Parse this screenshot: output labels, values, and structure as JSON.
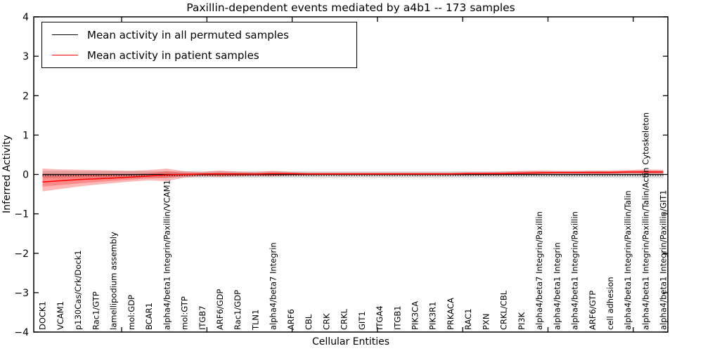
{
  "title": "Paxillin-dependent events mediated by a4b1 -- 173 samples",
  "legend": {
    "entries": [
      {
        "label": "Mean activity in all permuted samples",
        "color": "#000000"
      },
      {
        "label": "Mean activity in patient samples",
        "color": "#ff0000"
      }
    ],
    "position": "upper left"
  },
  "chart_data": {
    "type": "line",
    "title": "Paxillin-dependent events mediated by a4b1 -- 173 samples",
    "xlabel": "Cellular Entities",
    "ylabel": "Inferred Activity",
    "ylim": [
      -4,
      4
    ],
    "yticks": [
      4,
      3,
      2,
      1,
      0,
      -1,
      -2,
      -3,
      -4
    ],
    "xticks": [
      5,
      10,
      15,
      20,
      25,
      30,
      35
    ],
    "grid": false,
    "legend_position": "upper left",
    "categories": [
      "DOCK1",
      "VCAM1",
      "p130Cas/Crk/Dock1",
      "Rac1/GTP",
      "lamellipodium assembly",
      "mol:GDP",
      "BCAR1",
      "alpha4/beta1 Integrin/Paxillin/VCAM1",
      "mol:GTP",
      "ITGB7",
      "ARF6/GDP",
      "Rac1/GDP",
      "TLN1",
      "alpha4/beta7 Integrin",
      "ARF6",
      "CBL",
      "CRK",
      "CRKL",
      "GIT1",
      "ITGA4",
      "ITGB1",
      "PIK3CA",
      "PIK3R1",
      "PRKACA",
      "RAC1",
      "PXN",
      "CRKL/CBL",
      "PI3K",
      "alpha4/beta7 Integrin/Paxillin",
      "alpha4/beta1 Integrin",
      "alpha4/beta1 Integrin/Paxillin",
      "ARF6/GTP",
      "cell adhesion",
      "alpha4/beta1 Integrin/Paxillin/Talin",
      "alpha4/beta1 Integrin/Paxillin/Talin/Actin Cytoskeleton",
      "alpha4/beta1 Integrin/Paxillin/GIT1"
    ],
    "series": [
      {
        "name": "Mean activity in all permuted samples",
        "color": "#000000",
        "style": "solid",
        "width": 1.3,
        "constant": 0
      },
      {
        "name": "Permuted samples dotted reference",
        "color": "#000000",
        "style": "dotted",
        "width": 1.1,
        "constant": -0.03
      },
      {
        "name": "Mean activity in patient samples",
        "color": "#ff0000",
        "style": "solid",
        "width": 1.5,
        "values": [
          -0.19,
          -0.16,
          -0.13,
          -0.11,
          -0.09,
          -0.07,
          -0.04,
          -0.01,
          0.0,
          0.01,
          0.01,
          0.01,
          0.01,
          0.02,
          0.02,
          0.01,
          0.01,
          0.01,
          0.01,
          0.01,
          0.01,
          0.01,
          0.01,
          0.01,
          0.02,
          0.02,
          0.02,
          0.03,
          0.04,
          0.05,
          0.05,
          0.05,
          0.05,
          0.06,
          0.06,
          0.06
        ]
      }
    ],
    "bands": [
      {
        "name": "permuted-samples-range",
        "color": "#808080",
        "opacity": 0.28,
        "upper": [
          0.09,
          0.09,
          0.085,
          0.085,
          0.085,
          0.085,
          0.085,
          0.08,
          0.08,
          0.08,
          0.08,
          0.08,
          0.08,
          0.08,
          0.08,
          0.08,
          0.08,
          0.08,
          0.08,
          0.08,
          0.08,
          0.08,
          0.08,
          0.08,
          0.08,
          0.08,
          0.08,
          0.08,
          0.08,
          0.08,
          0.08,
          0.08,
          0.085,
          0.085,
          0.09,
          0.09
        ],
        "lower": [
          -0.09,
          -0.09,
          -0.085,
          -0.085,
          -0.085,
          -0.085,
          -0.085,
          -0.08,
          -0.08,
          -0.08,
          -0.08,
          -0.08,
          -0.08,
          -0.08,
          -0.08,
          -0.08,
          -0.08,
          -0.08,
          -0.08,
          -0.08,
          -0.08,
          -0.08,
          -0.08,
          -0.08,
          -0.08,
          -0.08,
          -0.08,
          -0.08,
          -0.08,
          -0.08,
          -0.08,
          -0.08,
          -0.085,
          -0.085,
          -0.09,
          -0.09
        ]
      },
      {
        "name": "patient-samples-range-outer",
        "color": "#ff0000",
        "opacity": 0.28,
        "upper": [
          0.15,
          0.13,
          0.12,
          0.11,
          0.1,
          0.09,
          0.11,
          0.15,
          0.08,
          0.06,
          0.1,
          0.07,
          0.06,
          0.09,
          0.06,
          0.05,
          0.05,
          0.05,
          0.05,
          0.05,
          0.05,
          0.05,
          0.05,
          0.05,
          0.06,
          0.06,
          0.07,
          0.09,
          0.1,
          0.09,
          0.09,
          0.1,
          0.1,
          0.11,
          0.13,
          0.12
        ],
        "lower": [
          -0.43,
          -0.37,
          -0.31,
          -0.26,
          -0.22,
          -0.18,
          -0.15,
          -0.17,
          -0.08,
          -0.05,
          -0.06,
          -0.05,
          -0.04,
          -0.05,
          -0.03,
          -0.02,
          -0.02,
          -0.02,
          -0.02,
          -0.02,
          -0.02,
          -0.02,
          -0.02,
          -0.02,
          -0.02,
          -0.02,
          -0.01,
          0.0,
          0.0,
          0.01,
          0.01,
          0.01,
          0.01,
          0.02,
          0.01,
          0.01
        ]
      },
      {
        "name": "patient-samples-range-inner",
        "color": "#ff0000",
        "opacity": 0.25,
        "upper": [
          0.02,
          0.015,
          0.01,
          0.01,
          0.005,
          0.0,
          0.03,
          0.08,
          0.04,
          0.03,
          0.05,
          0.04,
          0.03,
          0.05,
          0.04,
          0.03,
          0.03,
          0.03,
          0.03,
          0.03,
          0.03,
          0.03,
          0.03,
          0.03,
          0.04,
          0.04,
          0.05,
          0.06,
          0.07,
          0.07,
          0.07,
          0.08,
          0.08,
          0.09,
          0.1,
          0.09
        ],
        "lower": [
          -0.31,
          -0.27,
          -0.23,
          -0.19,
          -0.16,
          -0.13,
          -0.1,
          -0.09,
          -0.04,
          -0.02,
          -0.03,
          -0.02,
          -0.01,
          -0.02,
          -0.01,
          -0.01,
          -0.01,
          -0.01,
          -0.01,
          -0.01,
          -0.01,
          -0.01,
          -0.01,
          -0.01,
          0.0,
          0.0,
          0.0,
          0.01,
          0.02,
          0.03,
          0.03,
          0.03,
          0.03,
          0.04,
          0.04,
          0.04
        ]
      }
    ]
  }
}
